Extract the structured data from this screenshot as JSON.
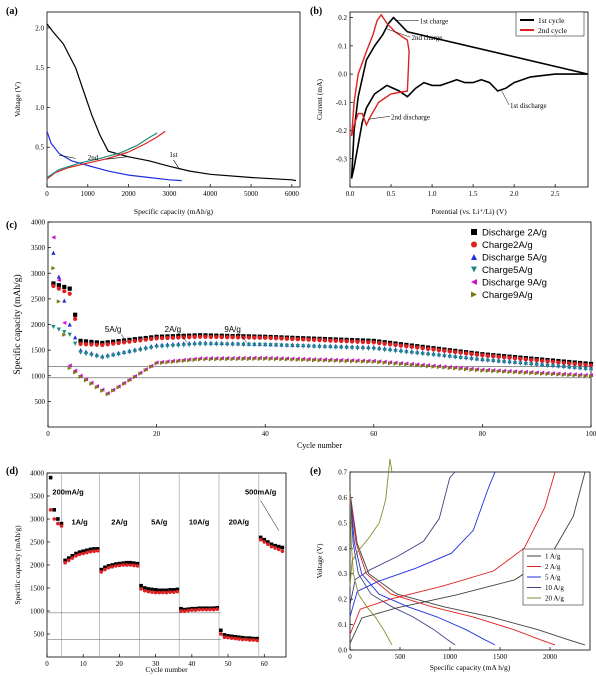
{
  "chart_data": [
    {
      "panel": "(a)",
      "type": "line",
      "xlabel": "Specific capacity (mAh/g)",
      "ylabel": "Voltage (V)",
      "xlim": [
        0,
        6200
      ],
      "ylim": [
        0,
        2.2
      ],
      "xticks": [
        0,
        1000,
        2000,
        3000,
        4000,
        5000,
        6000
      ],
      "yticks": [
        0.5,
        1.0,
        1.5,
        2.0
      ],
      "annotations": [
        "2nd",
        "1st"
      ],
      "colors": {
        "first": "#000000",
        "second_dis": "#1f2fe0",
        "second_ch": "#e02020",
        "third": "#1c8a80"
      },
      "series": [
        {
          "id": "first",
          "points": [
            [
              0,
              2.05
            ],
            [
              150,
              1.95
            ],
            [
              400,
              1.8
            ],
            [
              700,
              1.5
            ],
            [
              900,
              1.2
            ],
            [
              1100,
              0.9
            ],
            [
              1300,
              0.65
            ],
            [
              1500,
              0.45
            ],
            [
              2000,
              0.38
            ],
            [
              2500,
              0.33
            ],
            [
              3000,
              0.26
            ],
            [
              3500,
              0.2
            ],
            [
              4000,
              0.16
            ],
            [
              5000,
              0.12
            ],
            [
              6000,
              0.09
            ],
            [
              6100,
              0.08
            ]
          ]
        },
        {
          "id": "second_dis",
          "points": [
            [
              0,
              0.7
            ],
            [
              100,
              0.55
            ],
            [
              300,
              0.42
            ],
            [
              600,
              0.33
            ],
            [
              1000,
              0.27
            ],
            [
              1500,
              0.2
            ],
            [
              2000,
              0.15
            ],
            [
              2500,
              0.12
            ],
            [
              3000,
              0.09
            ],
            [
              3300,
              0.08
            ]
          ]
        },
        {
          "id": "second_ch",
          "points": [
            [
              0,
              0.1
            ],
            [
              200,
              0.18
            ],
            [
              500,
              0.24
            ],
            [
              1000,
              0.3
            ],
            [
              1500,
              0.36
            ],
            [
              2000,
              0.44
            ],
            [
              2400,
              0.54
            ],
            [
              2700,
              0.63
            ],
            [
              2900,
              0.7
            ]
          ]
        },
        {
          "id": "third",
          "points": [
            [
              0,
              0.12
            ],
            [
              300,
              0.22
            ],
            [
              800,
              0.3
            ],
            [
              1300,
              0.36
            ],
            [
              1800,
              0.43
            ],
            [
              2200,
              0.52
            ],
            [
              2500,
              0.62
            ],
            [
              2700,
              0.68
            ]
          ]
        }
      ]
    },
    {
      "panel": "(b)",
      "type": "line",
      "xlabel": "Potential (vs. Li⁺/Li) (V)",
      "ylabel": "Current (mA)",
      "xlim": [
        0,
        2.9
      ],
      "ylim": [
        -0.4,
        0.22
      ],
      "xticks": [
        0.0,
        0.5,
        1.0,
        1.5,
        2.0,
        2.5
      ],
      "yticks": [
        -0.3,
        -0.2,
        -0.1,
        0.0,
        0.1,
        0.2
      ],
      "annotations": [
        "1st charge",
        "2nd charge",
        "2nd discharge",
        "1st discharge"
      ],
      "legend": [
        "1st cycle",
        "2nd cycle"
      ],
      "colors": {
        "first": "#000000",
        "second": "#e02020"
      },
      "series": [
        {
          "id": "first",
          "points": [
            [
              0.02,
              -0.37
            ],
            [
              0.05,
              -0.33
            ],
            [
              0.1,
              -0.25
            ],
            [
              0.15,
              -0.17
            ],
            [
              0.2,
              -0.12
            ],
            [
              0.3,
              -0.07
            ],
            [
              0.45,
              -0.04
            ],
            [
              0.6,
              -0.06
            ],
            [
              0.7,
              -0.08
            ],
            [
              0.8,
              -0.05
            ],
            [
              0.9,
              -0.03
            ],
            [
              1.0,
              -0.04
            ],
            [
              1.1,
              -0.04
            ],
            [
              1.2,
              -0.03
            ],
            [
              1.3,
              -0.02
            ],
            [
              1.4,
              -0.03
            ],
            [
              1.5,
              -0.03
            ],
            [
              1.6,
              -0.02
            ],
            [
              1.7,
              -0.03
            ],
            [
              1.8,
              -0.06
            ],
            [
              1.9,
              -0.05
            ],
            [
              2.0,
              -0.03
            ],
            [
              2.2,
              -0.01
            ],
            [
              2.5,
              0.0
            ],
            [
              2.9,
              0.0
            ],
            [
              2.9,
              0.0
            ],
            [
              0.7,
              0.15
            ],
            [
              0.6,
              0.18
            ],
            [
              0.53,
              0.2
            ],
            [
              0.47,
              0.18
            ],
            [
              0.4,
              0.14
            ],
            [
              0.3,
              0.1
            ],
            [
              0.2,
              0.05
            ],
            [
              0.1,
              -0.08
            ],
            [
              0.05,
              -0.2
            ],
            [
              0.02,
              -0.37
            ]
          ]
        },
        {
          "id": "second",
          "points": [
            [
              0.02,
              -0.22
            ],
            [
              0.05,
              -0.18
            ],
            [
              0.1,
              -0.14
            ],
            [
              0.15,
              -0.14
            ],
            [
              0.2,
              -0.18
            ],
            [
              0.25,
              -0.15
            ],
            [
              0.35,
              -0.1
            ],
            [
              0.5,
              -0.07
            ],
            [
              0.7,
              -0.06
            ],
            [
              0.72,
              0.08
            ],
            [
              0.7,
              0.12
            ],
            [
              0.55,
              0.15
            ],
            [
              0.45,
              0.18
            ],
            [
              0.38,
              0.21
            ],
            [
              0.33,
              0.19
            ],
            [
              0.28,
              0.14
            ],
            [
              0.2,
              0.08
            ],
            [
              0.1,
              0.0
            ],
            [
              0.05,
              -0.1
            ],
            [
              0.02,
              -0.22
            ]
          ]
        }
      ]
    },
    {
      "panel": "(c)",
      "type": "scatter",
      "xlabel": "Cycle number",
      "ylabel": "Specific capacity (mAh/g)",
      "xlim": [
        0,
        100
      ],
      "ylim": [
        0,
        4000
      ],
      "xticks": [
        0,
        20,
        40,
        60,
        80,
        100
      ],
      "yticks": [
        500,
        1000,
        1500,
        2000,
        2500,
        3000,
        3500,
        4000
      ],
      "annotations": [
        "5A/g",
        "2A/g",
        "9A/g"
      ],
      "legend_position": "top-right",
      "series": [
        {
          "name": "Discharge 2A/g",
          "marker": "square",
          "color": "#000000",
          "anchors": [
            [
              1,
              2800
            ],
            [
              4,
              2700
            ],
            [
              6,
              1680
            ],
            [
              10,
              1640
            ],
            [
              20,
              1760
            ],
            [
              28,
              1790
            ],
            [
              40,
              1760
            ],
            [
              60,
              1680
            ],
            [
              80,
              1420
            ],
            [
              100,
              1230
            ]
          ]
        },
        {
          "name": "Charge2A/g",
          "marker": "circle",
          "color": "#e02020",
          "anchors": [
            [
              1,
              2750
            ],
            [
              4,
              2600
            ],
            [
              6,
              1620
            ],
            [
              10,
              1600
            ],
            [
              20,
              1730
            ],
            [
              28,
              1760
            ],
            [
              40,
              1740
            ],
            [
              60,
              1650
            ],
            [
              80,
              1400
            ],
            [
              100,
              1200
            ]
          ]
        },
        {
          "name": "Discharge 5A/g",
          "marker": "triangle-up",
          "color": "#1f2fe0",
          "anchors": [
            [
              1,
              3400
            ],
            [
              4,
              2000
            ],
            [
              6,
              1500
            ],
            [
              10,
              1380
            ],
            [
              20,
              1600
            ],
            [
              28,
              1650
            ],
            [
              40,
              1620
            ],
            [
              60,
              1560
            ],
            [
              80,
              1330
            ],
            [
              100,
              1150
            ]
          ]
        },
        {
          "name": "Charge5A/g",
          "marker": "triangle-down",
          "color": "#1c8a80",
          "anchors": [
            [
              1,
              1950
            ],
            [
              4,
              1800
            ],
            [
              6,
              1450
            ],
            [
              10,
              1350
            ],
            [
              20,
              1560
            ],
            [
              28,
              1610
            ],
            [
              40,
              1600
            ],
            [
              60,
              1520
            ],
            [
              80,
              1300
            ],
            [
              100,
              1120
            ]
          ]
        },
        {
          "name": "Discharge 9A/g",
          "marker": "triangle-left",
          "color": "#d010d0",
          "anchors": [
            [
              1,
              3700
            ],
            [
              4,
              1200
            ],
            [
              6,
              1000
            ],
            [
              11,
              660
            ],
            [
              20,
              1260
            ],
            [
              28,
              1340
            ],
            [
              40,
              1350
            ],
            [
              60,
              1290
            ],
            [
              80,
              1120
            ],
            [
              100,
              1010
            ]
          ]
        },
        {
          "name": "Charge9A/g",
          "marker": "triangle-right",
          "color": "#7a7a10",
          "anchors": [
            [
              1,
              3100
            ],
            [
              4,
              1150
            ],
            [
              6,
              980
            ],
            [
              11,
              640
            ],
            [
              20,
              1240
            ],
            [
              28,
              1320
            ],
            [
              40,
              1330
            ],
            [
              60,
              1270
            ],
            [
              80,
              1100
            ],
            [
              100,
              990
            ]
          ]
        }
      ]
    },
    {
      "panel": "(d)",
      "type": "scatter",
      "xlabel": "Cycle number",
      "ylabel": "Specific capacity (mAh/g)",
      "xlim": [
        0,
        66
      ],
      "ylim": [
        0,
        4000
      ],
      "xticks": [
        0,
        10,
        20,
        30,
        40,
        50,
        60
      ],
      "yticks": [
        500,
        1000,
        1500,
        2000,
        2500,
        3000,
        3500,
        4000
      ],
      "annotations": [
        "200mA/g",
        "1A/g",
        "2A/g",
        "5A/g",
        "10A/g",
        "20A/g",
        "500mA/g"
      ],
      "dividers": [
        4,
        14.5,
        25.5,
        36.5,
        47.5,
        58.5
      ],
      "colors": {
        "discharge": "#000000",
        "charge": "#e02020"
      },
      "segments": [
        {
          "start": 1,
          "end": 4,
          "discharge": [
            3900,
            3200,
            3000,
            2900
          ],
          "charge": [
            3200,
            3000,
            2900,
            2850
          ]
        },
        {
          "start": 5,
          "end": 14,
          "discharge": [
            2100,
            2150,
            2200,
            2250,
            2280,
            2300,
            2320,
            2340,
            2350,
            2350
          ],
          "charge": [
            2050,
            2100,
            2150,
            2200,
            2230,
            2250,
            2270,
            2290,
            2300,
            2310
          ]
        },
        {
          "start": 15,
          "end": 25,
          "discharge": [
            1900,
            1950,
            1980,
            2000,
            2020,
            2030,
            2040,
            2050,
            2050,
            2040,
            2030
          ],
          "charge": [
            1850,
            1900,
            1940,
            1960,
            1980,
            1990,
            2000,
            2000,
            2000,
            1990,
            1980
          ]
        },
        {
          "start": 26,
          "end": 36,
          "discharge": [
            1550,
            1500,
            1480,
            1470,
            1460,
            1450,
            1450,
            1450,
            1460,
            1460,
            1470
          ],
          "charge": [
            1480,
            1440,
            1420,
            1410,
            1400,
            1400,
            1400,
            1400,
            1410,
            1410,
            1420
          ]
        },
        {
          "start": 37,
          "end": 47,
          "discharge": [
            1050,
            1030,
            1040,
            1050,
            1050,
            1060,
            1060,
            1060,
            1060,
            1060,
            1070
          ],
          "charge": [
            1000,
            1000,
            1010,
            1020,
            1020,
            1030,
            1030,
            1030,
            1030,
            1030,
            1040
          ]
        },
        {
          "start": 48,
          "end": 58,
          "discharge": [
            580,
            480,
            460,
            450,
            440,
            430,
            420,
            410,
            410,
            400,
            400
          ],
          "charge": [
            500,
            430,
            420,
            410,
            400,
            390,
            380,
            380,
            370,
            370,
            360
          ]
        },
        {
          "start": 59,
          "end": 65,
          "discharge": [
            2600,
            2550,
            2500,
            2450,
            2420,
            2400,
            2380
          ],
          "charge": [
            2550,
            2500,
            2450,
            2400,
            2370,
            2340,
            2300
          ]
        }
      ]
    },
    {
      "panel": "(e)",
      "type": "line",
      "xlabel": "Specific capacity (mA h/g)",
      "ylabel": "Voltage (V)",
      "xlim": [
        0,
        2400
      ],
      "ylim": [
        0,
        0.7
      ],
      "xticks": [
        0,
        500,
        1000,
        1500,
        2000
      ],
      "yticks": [
        0.0,
        0.1,
        0.2,
        0.3,
        0.4,
        0.5,
        0.6,
        0.7
      ],
      "legend_position": "bottom-right",
      "series": [
        {
          "name": "1 A/g",
          "color": "#404040",
          "capacity": 2350
        },
        {
          "name": "2 A/g",
          "color": "#e02020",
          "capacity": 2050
        },
        {
          "name": "5 A/g",
          "color": "#1f2fe0",
          "capacity": 1450
        },
        {
          "name": "10 A/g",
          "color": "#404080",
          "capacity": 1050
        },
        {
          "name": "20 A/g",
          "color": "#8a8a30",
          "capacity": 420
        }
      ]
    }
  ]
}
